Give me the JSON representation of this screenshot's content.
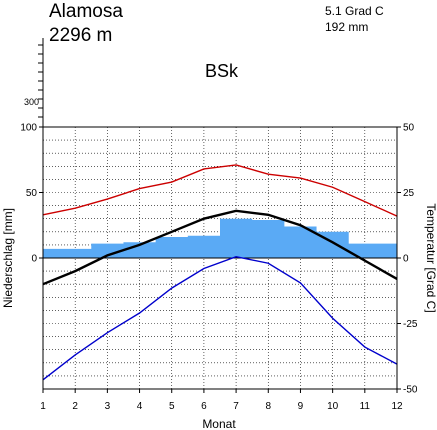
{
  "header": {
    "station": "Alamosa",
    "elevation": "2296 m",
    "mean_temp": "5.1 Grad C",
    "annual_precip": "192 mm",
    "climate_class": "BSk"
  },
  "chart_data": {
    "type": "line",
    "title": "",
    "xlabel": "Monat",
    "ylabel_left": "Niederschlag [mm]",
    "ylabel_right": "Temperatur [Grad C]",
    "x": [
      1,
      2,
      3,
      4,
      5,
      6,
      7,
      8,
      9,
      10,
      11,
      12
    ],
    "x_ticks": [
      "1",
      "2",
      "3",
      "4",
      "5",
      "6",
      "7",
      "8",
      "9",
      "10",
      "11",
      "12"
    ],
    "ylim_left": [
      -100,
      100
    ],
    "ylim_right": [
      -50,
      50
    ],
    "left_ticks": [
      "100",
      "50",
      "0"
    ],
    "right_ticks": [
      "50",
      "25",
      "0",
      "-25",
      "-50"
    ],
    "upper_tick_label": "300",
    "grid": true,
    "colors": {
      "precip_fill": "#5aaaf5",
      "temp_max": "#cc0000",
      "temp_mean": "#000000",
      "temp_min": "#0000cc"
    },
    "precipitation": {
      "axis": "left",
      "values": [
        7,
        7,
        11,
        12,
        16,
        17,
        30,
        29,
        24,
        20,
        11,
        11
      ]
    },
    "series": [
      {
        "key": "temp_max",
        "axis": "right",
        "values": [
          16.5,
          19,
          22.5,
          26.5,
          29,
          34,
          35.5,
          32,
          30.5,
          27,
          21.5,
          16
        ]
      },
      {
        "key": "temp_mean",
        "axis": "right",
        "values": [
          -10,
          -5,
          1,
          5,
          10,
          15,
          18,
          16.5,
          12.5,
          6,
          -1,
          -8
        ]
      },
      {
        "key": "temp_min",
        "axis": "right",
        "values": [
          -46.5,
          -37,
          -28.5,
          -21,
          -11.5,
          -4,
          0.5,
          -2,
          -9.5,
          -23,
          -34,
          -40.5
        ]
      }
    ]
  }
}
